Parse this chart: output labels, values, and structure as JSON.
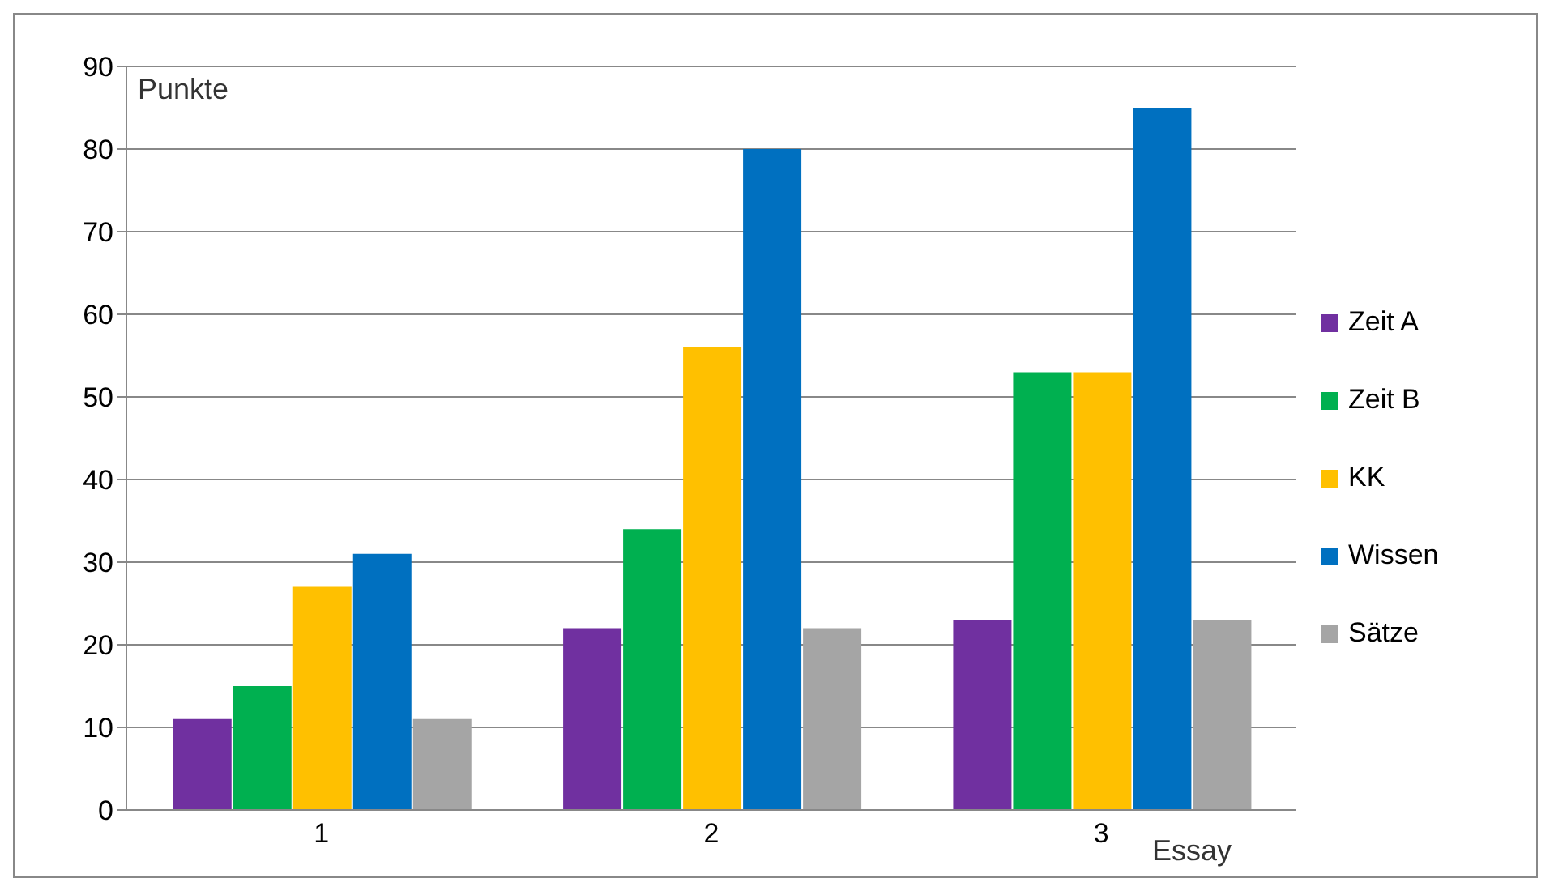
{
  "chart_data": {
    "type": "bar",
    "ylabel": "Punkte",
    "xlabel": "Essay",
    "categories": [
      "1",
      "2",
      "3"
    ],
    "series": [
      {
        "name": "Zeit A",
        "color": "#7030a0",
        "values": [
          11,
          22,
          23
        ]
      },
      {
        "name": "Zeit B",
        "color": "#00b050",
        "values": [
          15,
          34,
          53
        ]
      },
      {
        "name": "KK",
        "color": "#ffc000",
        "values": [
          27,
          56,
          53
        ]
      },
      {
        "name": "Wissen",
        "color": "#0070c0",
        "values": [
          31,
          80,
          85
        ]
      },
      {
        "name": "Sätze",
        "color": "#a5a5a5",
        "values": [
          11,
          22,
          23
        ]
      }
    ],
    "ylim": [
      0,
      90
    ],
    "yticks": [
      0,
      10,
      20,
      30,
      40,
      50,
      60,
      70,
      80,
      90
    ],
    "grid": "y",
    "legend": "right"
  }
}
